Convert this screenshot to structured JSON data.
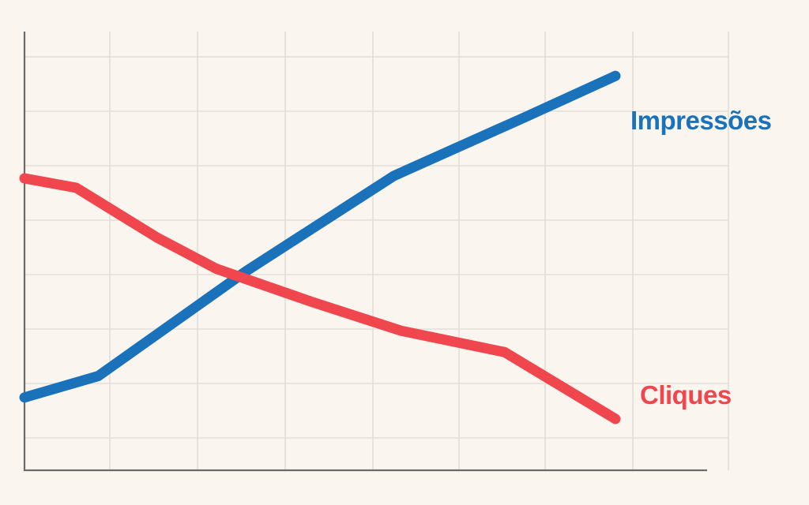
{
  "chart_data": {
    "type": "line",
    "title": "",
    "xlabel": "",
    "ylabel": "",
    "x": [
      0,
      1,
      2,
      3,
      4,
      5,
      6,
      7
    ],
    "xlim": [
      0,
      8
    ],
    "ylim": [
      0,
      8
    ],
    "grid": true,
    "legend": "inline-right",
    "series": [
      {
        "name": "Impressões",
        "color": "#1A72BA",
        "x": [
          0,
          1,
          3,
          5,
          6.8,
          8
        ],
        "values": [
          0.85,
          1.3,
          3.5,
          5.5,
          6.75,
          7.6
        ]
      },
      {
        "name": "Cliques",
        "color": "#F0464E",
        "x": [
          0,
          0.7,
          1.8,
          2.6,
          3.9,
          5.1,
          6.5,
          8
        ],
        "values": [
          5.45,
          5.25,
          4.2,
          3.55,
          2.85,
          2.25,
          1.8,
          0.4
        ]
      }
    ]
  }
}
